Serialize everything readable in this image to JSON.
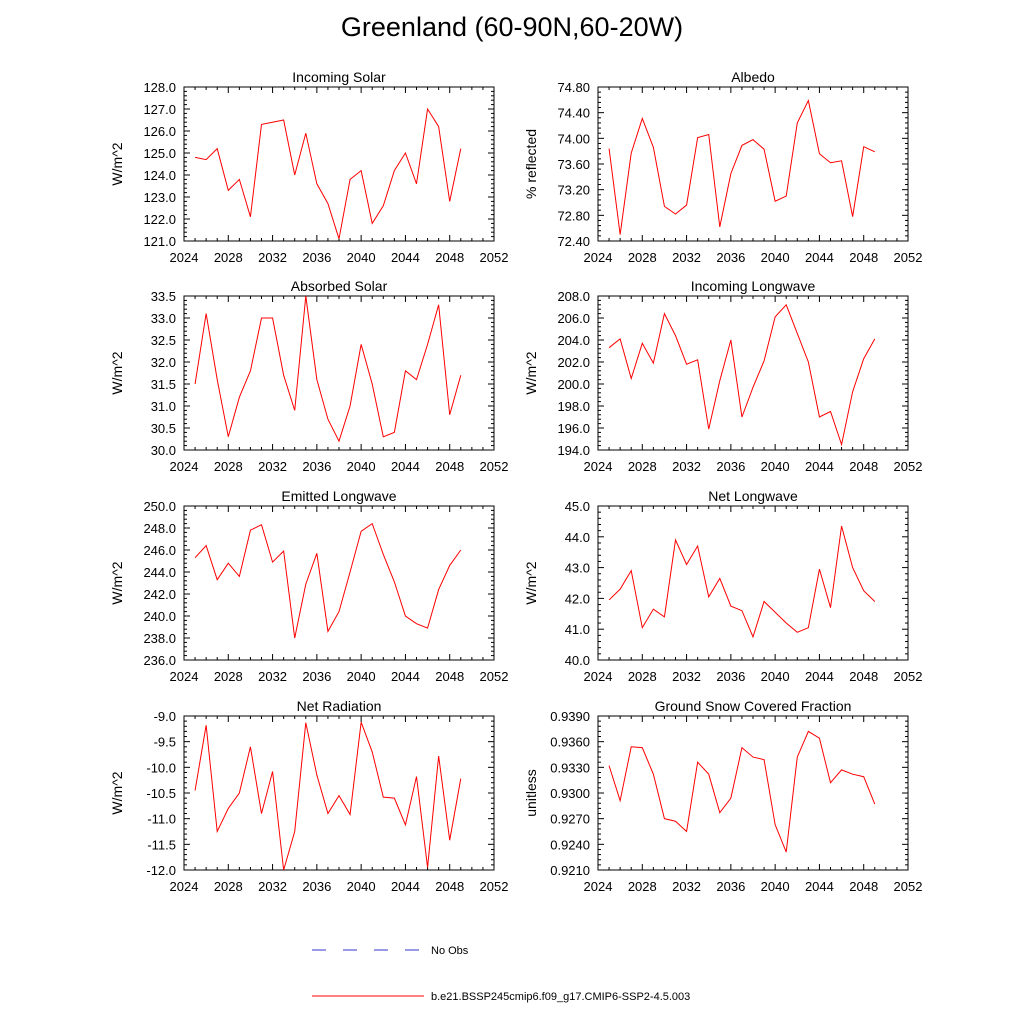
{
  "title": "Greenland (60-90N,60-20W)",
  "legend": {
    "obs_label": "No Obs",
    "model_label": "b.e21.BSSP245cmip6.f09_g17.CMIP6-SSP2-4.5.003",
    "obs_color": "#3333cc",
    "model_color": "#ff0000"
  },
  "chart_data": [
    {
      "type": "line",
      "title": "Incoming Solar",
      "ylabel": "W/m^2",
      "xlabel": "",
      "xlim": [
        2024,
        2052
      ],
      "xticks": [
        2024,
        2028,
        2032,
        2036,
        2040,
        2044,
        2048,
        2052
      ],
      "xtick_labels": [
        "2024",
        "2028",
        "2032",
        "2036",
        "2040",
        "2044",
        "2048",
        "2052"
      ],
      "ylim": [
        121.0,
        128.0
      ],
      "yticks": [
        121.0,
        122.0,
        123.0,
        124.0,
        125.0,
        126.0,
        127.0,
        128.0
      ],
      "ytick_labels": [
        "121.0",
        "122.0",
        "123.0",
        "124.0",
        "125.0",
        "126.0",
        "127.0",
        "128.0"
      ],
      "series": [
        {
          "name": "b.e21.BSSP245cmip6.f09_g17.CMIP6-SSP2-4.5.003",
          "x": [
            2025,
            2026,
            2027,
            2028,
            2029,
            2030,
            2031,
            2032,
            2033,
            2034,
            2035,
            2036,
            2037,
            2038,
            2039,
            2040,
            2041,
            2042,
            2043,
            2044,
            2045,
            2046,
            2047,
            2048,
            2049
          ],
          "values": [
            124.8,
            124.7,
            125.2,
            123.3,
            123.8,
            122.1,
            126.3,
            126.4,
            126.5,
            124.0,
            125.9,
            123.6,
            122.7,
            121.1,
            123.8,
            124.2,
            121.8,
            122.6,
            124.2,
            125.0,
            123.6,
            127.0,
            126.2,
            122.8,
            125.2
          ]
        }
      ]
    },
    {
      "type": "line",
      "title": "Albedo",
      "ylabel": "% reflected",
      "xlabel": "",
      "xlim": [
        2024,
        2052
      ],
      "xticks": [
        2024,
        2028,
        2032,
        2036,
        2040,
        2044,
        2048,
        2052
      ],
      "xtick_labels": [
        "2024",
        "2028",
        "2032",
        "2036",
        "2040",
        "2044",
        "2048",
        "2052"
      ],
      "ylim": [
        72.4,
        74.8
      ],
      "yticks": [
        72.4,
        72.8,
        73.2,
        73.6,
        74.0,
        74.4,
        74.8
      ],
      "ytick_labels": [
        "72.40",
        "72.80",
        "73.20",
        "73.60",
        "74.00",
        "74.40",
        "74.80"
      ],
      "series": [
        {
          "name": "b.e21.BSSP245cmip6.f09_g17.CMIP6-SSP2-4.5.003",
          "x": [
            2025,
            2026,
            2027,
            2028,
            2029,
            2030,
            2031,
            2032,
            2033,
            2034,
            2035,
            2036,
            2037,
            2038,
            2039,
            2040,
            2041,
            2042,
            2043,
            2044,
            2045,
            2046,
            2047,
            2048,
            2049
          ],
          "values": [
            73.84,
            72.5,
            73.77,
            74.31,
            73.86,
            72.94,
            72.82,
            72.96,
            74.01,
            74.06,
            72.62,
            73.45,
            73.89,
            73.98,
            73.83,
            73.02,
            73.1,
            74.24,
            74.59,
            73.76,
            73.62,
            73.65,
            72.78,
            73.87,
            73.79
          ]
        }
      ]
    },
    {
      "type": "line",
      "title": "Absorbed Solar",
      "ylabel": "W/m^2",
      "xlabel": "",
      "xlim": [
        2024,
        2052
      ],
      "xticks": [
        2024,
        2028,
        2032,
        2036,
        2040,
        2044,
        2048,
        2052
      ],
      "xtick_labels": [
        "2024",
        "2028",
        "2032",
        "2036",
        "2040",
        "2044",
        "2048",
        "2052"
      ],
      "ylim": [
        30.0,
        33.5
      ],
      "yticks": [
        30.0,
        30.5,
        31.0,
        31.5,
        32.0,
        32.5,
        33.0,
        33.5
      ],
      "ytick_labels": [
        "30.0",
        "30.5",
        "31.0",
        "31.5",
        "32.0",
        "32.5",
        "33.0",
        "33.5"
      ],
      "series": [
        {
          "name": "b.e21.BSSP245cmip6.f09_g17.CMIP6-SSP2-4.5.003",
          "x": [
            2025,
            2026,
            2027,
            2028,
            2029,
            2030,
            2031,
            2032,
            2033,
            2034,
            2035,
            2036,
            2037,
            2038,
            2039,
            2040,
            2041,
            2042,
            2043,
            2044,
            2045,
            2046,
            2047,
            2048,
            2049
          ],
          "values": [
            31.5,
            33.1,
            31.6,
            30.3,
            31.2,
            31.8,
            33.0,
            33.0,
            31.7,
            30.9,
            33.5,
            31.6,
            30.7,
            30.2,
            31.0,
            32.4,
            31.5,
            30.3,
            30.4,
            31.8,
            31.6,
            32.4,
            33.3,
            30.8,
            31.7
          ]
        }
      ]
    },
    {
      "type": "line",
      "title": "Incoming Longwave",
      "ylabel": "W/m^2",
      "xlabel": "",
      "xlim": [
        2024,
        2052
      ],
      "xticks": [
        2024,
        2028,
        2032,
        2036,
        2040,
        2044,
        2048,
        2052
      ],
      "xtick_labels": [
        "2024",
        "2028",
        "2032",
        "2036",
        "2040",
        "2044",
        "2048",
        "2052"
      ],
      "ylim": [
        194.0,
        208.0
      ],
      "yticks": [
        194.0,
        196.0,
        198.0,
        200.0,
        202.0,
        204.0,
        206.0,
        208.0
      ],
      "ytick_labels": [
        "194.0",
        "196.0",
        "198.0",
        "200.0",
        "202.0",
        "204.0",
        "206.0",
        "208.0"
      ],
      "series": [
        {
          "name": "b.e21.BSSP245cmip6.f09_g17.CMIP6-SSP2-4.5.003",
          "x": [
            2025,
            2026,
            2027,
            2028,
            2029,
            2030,
            2031,
            2032,
            2033,
            2034,
            2035,
            2036,
            2037,
            2038,
            2039,
            2040,
            2041,
            2042,
            2043,
            2044,
            2045,
            2046,
            2047,
            2048,
            2049
          ],
          "values": [
            203.3,
            204.1,
            200.5,
            203.7,
            201.9,
            206.4,
            204.4,
            201.8,
            202.2,
            195.9,
            200.3,
            204.0,
            197.0,
            199.7,
            202.1,
            206.1,
            207.2,
            204.6,
            202.0,
            197.0,
            197.5,
            194.5,
            199.3,
            202.3,
            204.1
          ]
        }
      ]
    },
    {
      "type": "line",
      "title": "Emitted Longwave",
      "ylabel": "W/m^2",
      "xlabel": "",
      "xlim": [
        2024,
        2052
      ],
      "xticks": [
        2024,
        2028,
        2032,
        2036,
        2040,
        2044,
        2048,
        2052
      ],
      "xtick_labels": [
        "2024",
        "2028",
        "2032",
        "2036",
        "2040",
        "2044",
        "2048",
        "2052"
      ],
      "ylim": [
        236.0,
        250.0
      ],
      "yticks": [
        236.0,
        238.0,
        240.0,
        242.0,
        244.0,
        246.0,
        248.0,
        250.0
      ],
      "ytick_labels": [
        "236.0",
        "238.0",
        "240.0",
        "242.0",
        "244.0",
        "246.0",
        "248.0",
        "250.0"
      ],
      "series": [
        {
          "name": "b.e21.BSSP245cmip6.f09_g17.CMIP6-SSP2-4.5.003",
          "x": [
            2025,
            2026,
            2027,
            2028,
            2029,
            2030,
            2031,
            2032,
            2033,
            2034,
            2035,
            2036,
            2037,
            2038,
            2039,
            2040,
            2041,
            2042,
            2043,
            2044,
            2045,
            2046,
            2047,
            2048,
            2049
          ],
          "values": [
            245.3,
            246.4,
            243.3,
            244.8,
            243.6,
            247.8,
            248.3,
            244.9,
            245.9,
            238.0,
            242.9,
            245.7,
            238.6,
            240.4,
            244.0,
            247.7,
            248.4,
            245.6,
            243.1,
            240.0,
            239.3,
            238.9,
            242.4,
            244.6,
            246.0
          ]
        }
      ]
    },
    {
      "type": "line",
      "title": "Net Longwave",
      "ylabel": "W/m^2",
      "xlabel": "",
      "xlim": [
        2024,
        2052
      ],
      "xticks": [
        2024,
        2028,
        2032,
        2036,
        2040,
        2044,
        2048,
        2052
      ],
      "xtick_labels": [
        "2024",
        "2028",
        "2032",
        "2036",
        "2040",
        "2044",
        "2048",
        "2052"
      ],
      "ylim": [
        40.0,
        45.0
      ],
      "yticks": [
        40.0,
        41.0,
        42.0,
        43.0,
        44.0,
        45.0
      ],
      "ytick_labels": [
        "40.0",
        "41.0",
        "42.0",
        "43.0",
        "44.0",
        "45.0"
      ],
      "series": [
        {
          "name": "b.e21.BSSP245cmip6.f09_g17.CMIP6-SSP2-4.5.003",
          "x": [
            2025,
            2026,
            2027,
            2028,
            2029,
            2030,
            2031,
            2032,
            2033,
            2034,
            2035,
            2036,
            2037,
            2038,
            2039,
            2040,
            2041,
            2042,
            2043,
            2044,
            2045,
            2046,
            2047,
            2048,
            2049
          ],
          "values": [
            41.95,
            42.3,
            42.9,
            41.05,
            41.65,
            41.4,
            43.9,
            43.1,
            43.7,
            42.05,
            42.65,
            41.75,
            41.6,
            40.75,
            41.9,
            41.55,
            41.2,
            40.9,
            41.05,
            42.95,
            41.7,
            44.35,
            43.0,
            42.25,
            41.9
          ]
        }
      ]
    },
    {
      "type": "line",
      "title": "Net Radiation",
      "ylabel": "W/m^2",
      "xlabel": "",
      "xlim": [
        2024,
        2052
      ],
      "xticks": [
        2024,
        2028,
        2032,
        2036,
        2040,
        2044,
        2048,
        2052
      ],
      "xtick_labels": [
        "2024",
        "2028",
        "2032",
        "2036",
        "2040",
        "2044",
        "2048",
        "2052"
      ],
      "ylim": [
        -12.0,
        -9.0
      ],
      "yticks": [
        -12.0,
        -11.5,
        -11.0,
        -10.5,
        -10.0,
        -9.5,
        -9.0
      ],
      "ytick_labels": [
        "-12.0",
        "-11.5",
        "-11.0",
        "-10.5",
        "-10.0",
        "-9.5",
        "-9.0"
      ],
      "series": [
        {
          "name": "b.e21.BSSP245cmip6.f09_g17.CMIP6-SSP2-4.5.003",
          "x": [
            2025,
            2026,
            2027,
            2028,
            2029,
            2030,
            2031,
            2032,
            2033,
            2034,
            2035,
            2036,
            2037,
            2038,
            2039,
            2040,
            2041,
            2042,
            2043,
            2044,
            2045,
            2046,
            2047,
            2048,
            2049
          ],
          "values": [
            -10.45,
            -9.18,
            -11.25,
            -10.8,
            -10.5,
            -9.6,
            -10.9,
            -10.08,
            -12.0,
            -11.25,
            -9.13,
            -10.15,
            -10.9,
            -10.55,
            -10.92,
            -9.12,
            -9.7,
            -10.58,
            -10.6,
            -11.12,
            -10.18,
            -11.95,
            -9.78,
            -11.42,
            -10.22
          ]
        }
      ]
    },
    {
      "type": "line",
      "title": "Ground Snow Covered Fraction",
      "ylabel": "unitless",
      "xlabel": "",
      "xlim": [
        2024,
        2052
      ],
      "xticks": [
        2024,
        2028,
        2032,
        2036,
        2040,
        2044,
        2048,
        2052
      ],
      "xtick_labels": [
        "2024",
        "2028",
        "2032",
        "2036",
        "2040",
        "2044",
        "2048",
        "2052"
      ],
      "ylim": [
        0.921,
        0.939
      ],
      "yticks": [
        0.921,
        0.924,
        0.927,
        0.93,
        0.933,
        0.936,
        0.939
      ],
      "ytick_labels": [
        "0.9210",
        "0.9240",
        "0.9270",
        "0.9300",
        "0.9330",
        "0.9360",
        "0.9390"
      ],
      "series": [
        {
          "name": "b.e21.BSSP245cmip6.f09_g17.CMIP6-SSP2-4.5.003",
          "x": [
            2025,
            2026,
            2027,
            2028,
            2029,
            2030,
            2031,
            2032,
            2033,
            2034,
            2035,
            2036,
            2037,
            2038,
            2039,
            2040,
            2041,
            2042,
            2043,
            2044,
            2045,
            2046,
            2047,
            2048,
            2049
          ],
          "values": [
            0.9332,
            0.9291,
            0.9354,
            0.9353,
            0.9322,
            0.927,
            0.9267,
            0.9255,
            0.9336,
            0.9322,
            0.9277,
            0.9294,
            0.9353,
            0.9342,
            0.9339,
            0.9263,
            0.9231,
            0.9342,
            0.9372,
            0.9364,
            0.9312,
            0.9327,
            0.9322,
            0.9319,
            0.9287
          ]
        }
      ]
    }
  ]
}
